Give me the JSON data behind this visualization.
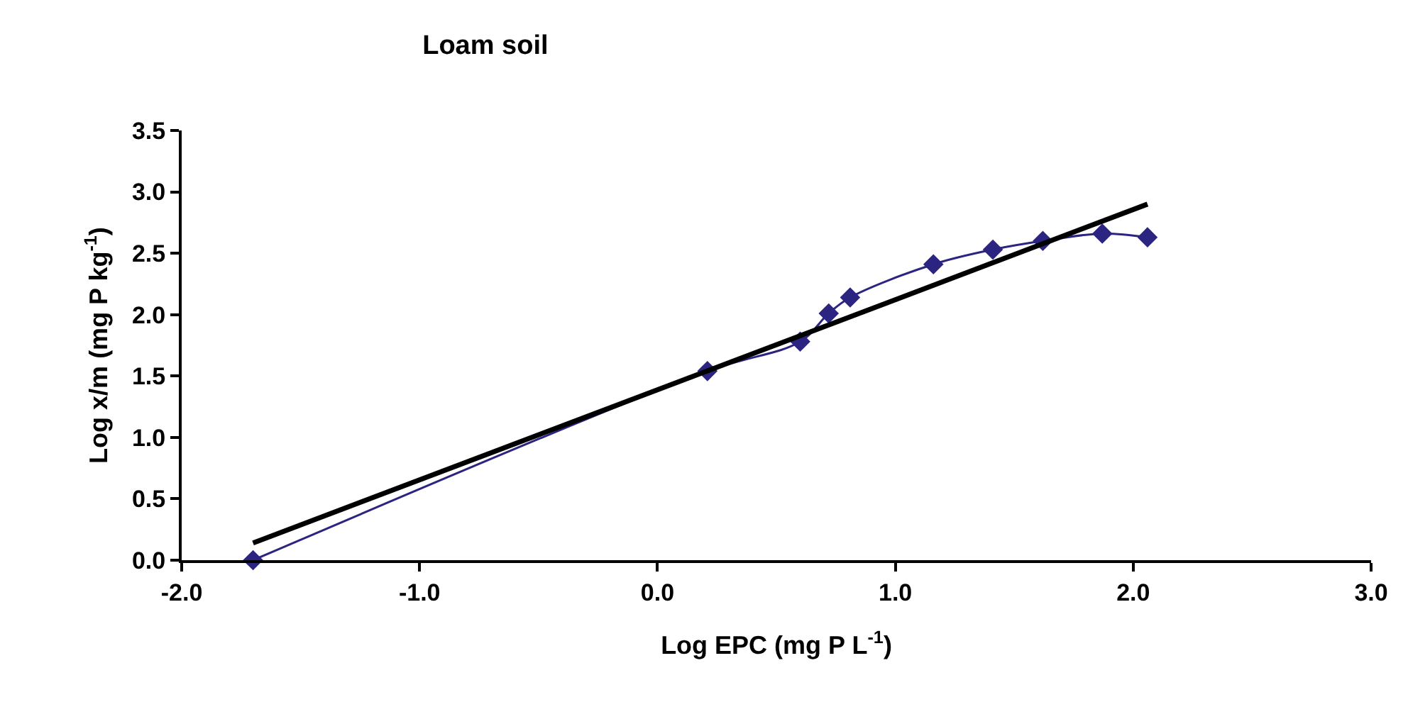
{
  "chart_data": {
    "type": "line",
    "title": "Loam soil",
    "xlabel": "Log EPC (mg P L$^{-1}$)",
    "ylabel": "Log x/m (mg P kg$^{-1}$)",
    "xlim": [
      -2.0,
      3.0
    ],
    "xticks": [
      {
        "value": -2,
        "label": "-2.0"
      },
      {
        "value": -1,
        "label": "-1.0"
      },
      {
        "value": 0,
        "label": "0.0"
      },
      {
        "value": 1,
        "label": "1.0"
      },
      {
        "value": 2,
        "label": "2.0"
      },
      {
        "value": 3,
        "label": "3.0"
      }
    ],
    "ylim": [
      0,
      3.5
    ],
    "yticks": [
      {
        "value": 0,
        "label": "0.0"
      },
      {
        "value": 0.5,
        "label": "0.5"
      },
      {
        "value": 1,
        "label": "1.0"
      },
      {
        "value": 1.5,
        "label": "1.5"
      },
      {
        "value": 2,
        "label": "2.0"
      },
      {
        "value": 2.5,
        "label": "2.5"
      },
      {
        "value": 3,
        "label": "3.0"
      },
      {
        "value": 3.5,
        "label": "3.5"
      }
    ],
    "series": [
      {
        "color": "#2b2480",
        "marker": "diamond",
        "x": [
          -1.7,
          0.21,
          0.6,
          0.72,
          0.81,
          1.16,
          1.41,
          1.62,
          1.87,
          2.06
        ],
        "values": [
          0.0,
          1.54,
          1.78,
          2.01,
          2.14,
          2.41,
          2.53,
          2.6,
          2.66,
          2.63
        ]
      },
      {
        "color": "#000000",
        "marker": "none",
        "x": [
          -1.7,
          2.06
        ],
        "values": [
          0.14,
          2.9
        ]
      }
    ]
  }
}
